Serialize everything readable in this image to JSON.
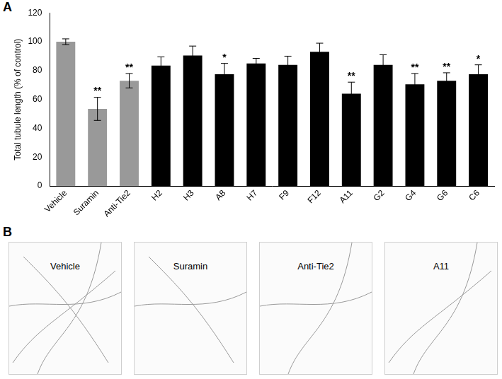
{
  "panel_labels": [
    "A",
    "B"
  ],
  "chart_data": {
    "type": "bar",
    "y_label": "Total tubule length (% of control)",
    "categories": [
      "Vehicle",
      "Suramin",
      "Anti-Tie2",
      "H2",
      "H3",
      "A8",
      "H7",
      "F9",
      "F12",
      "A11",
      "G2",
      "G4",
      "G6",
      "C6"
    ],
    "values": [
      100,
      53.5,
      73,
      83.5,
      90.5,
      77.5,
      85,
      84,
      93,
      64,
      84,
      70.5,
      73,
      77.5
    ],
    "errors": [
      2,
      8,
      5,
      6,
      6.5,
      7.5,
      3.5,
      6,
      6,
      8,
      7,
      7.5,
      5.5,
      6.5
    ],
    "annotations": [
      null,
      "**",
      "**",
      null,
      null,
      "*",
      null,
      null,
      null,
      "**",
      null,
      "**",
      "**",
      "*"
    ],
    "colors": [
      "#999999",
      "#999999",
      "#999999",
      "#000000",
      "#000000",
      "#000000",
      "#000000",
      "#000000",
      "#000000",
      "#000000",
      "#000000",
      "#000000",
      "#000000",
      "#000000"
    ],
    "ylim": [
      0,
      120
    ],
    "yticks": [
      0,
      20,
      40,
      60,
      80,
      100,
      120
    ],
    "grid": false
  },
  "images": [
    {
      "label": "Vehicle"
    },
    {
      "label": "Suramin"
    },
    {
      "label": "Anti-Tie2"
    },
    {
      "label": "A11"
    }
  ]
}
